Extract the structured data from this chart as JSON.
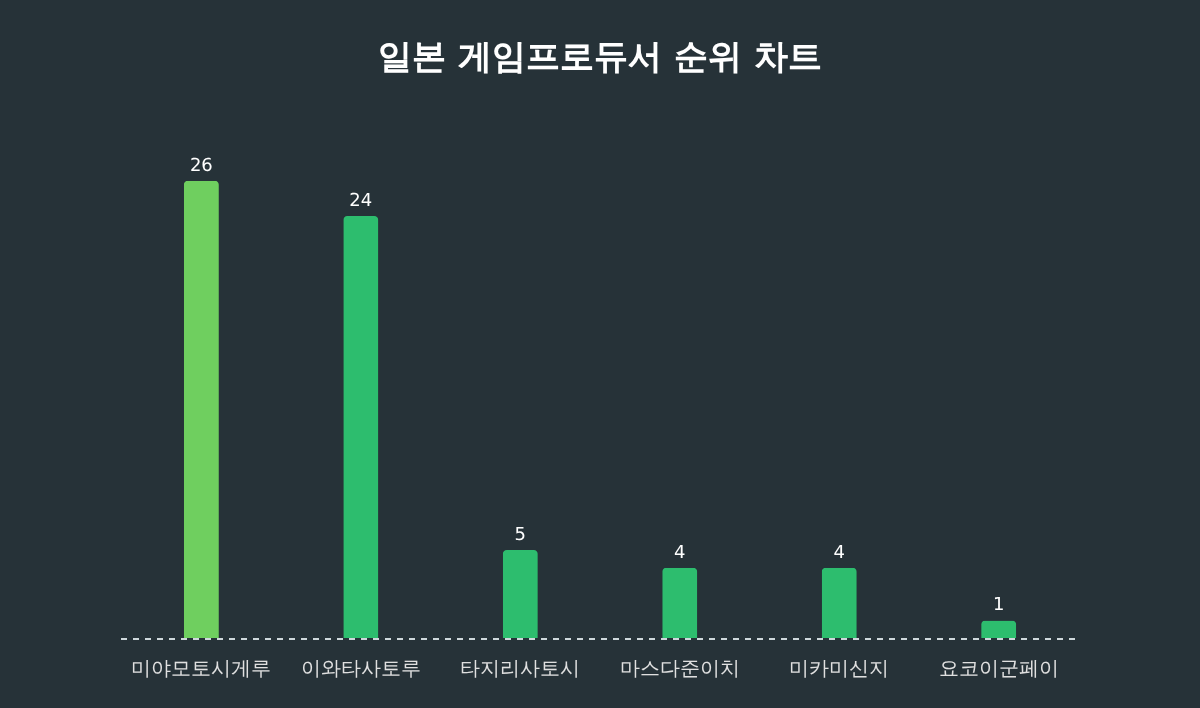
{
  "chart_data": {
    "type": "bar",
    "title": "일본 게임프로듀서 순위 차트",
    "categories": [
      "미야모토시게루",
      "이와타사토루",
      "타지리사토시",
      "마스다준이치",
      "미카미신지",
      "요코이군페이"
    ],
    "values": [
      26,
      24,
      5,
      4,
      4,
      1
    ],
    "colors": [
      "#6fcf5f",
      "#2dbd6e",
      "#2dbd6e",
      "#2dbd6e",
      "#2dbd6e",
      "#2dbd6e"
    ],
    "data_labels": true
  }
}
